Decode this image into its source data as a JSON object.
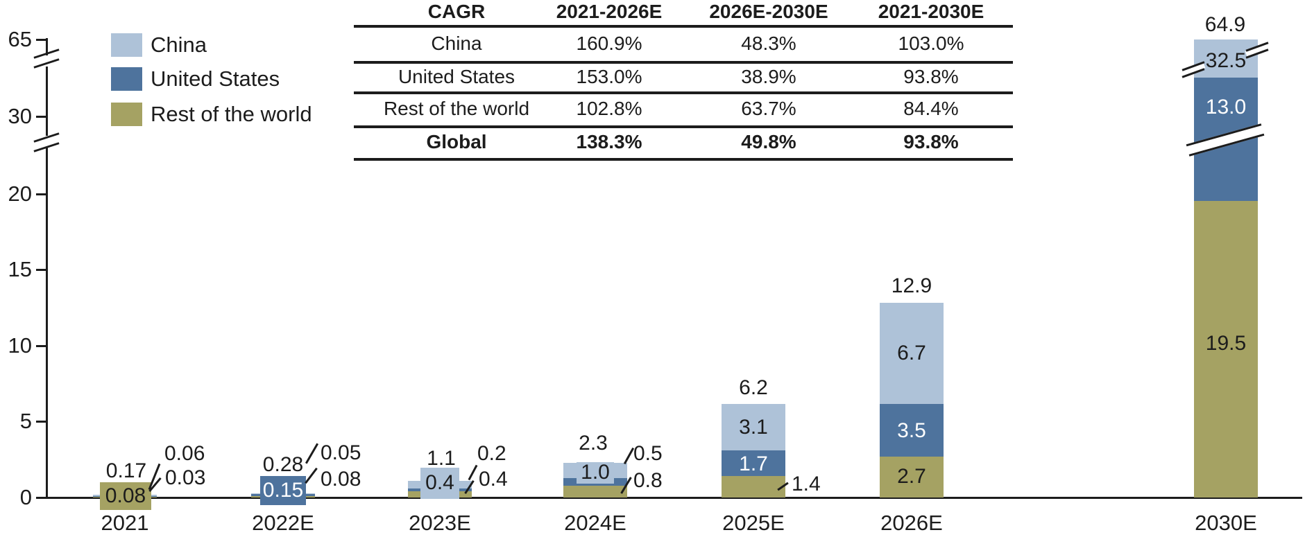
{
  "legend": {
    "items": [
      {
        "label": "China",
        "color": "#AEC2D8"
      },
      {
        "label": "United States",
        "color": "#4E739D"
      },
      {
        "label": "Rest of the world",
        "color": "#A5A263"
      }
    ]
  },
  "table": {
    "header": [
      "CAGR",
      "2021-2026E",
      "2026E-2030E",
      "2021-2030E"
    ],
    "rows": [
      {
        "label": "China",
        "values": [
          "160.9%",
          "48.3%",
          "103.0%"
        ],
        "bold": false
      },
      {
        "label": "United States",
        "values": [
          "153.0%",
          "38.9%",
          "93.8%"
        ],
        "bold": false
      },
      {
        "label": "Rest of the world",
        "values": [
          "102.8%",
          "63.7%",
          "84.4%"
        ],
        "bold": false
      },
      {
        "label": "Global",
        "values": [
          "138.3%",
          "49.8%",
          "93.8%"
        ],
        "bold": true
      }
    ]
  },
  "y_axis": {
    "tick_labels": [
      "65",
      "30",
      "20",
      "15",
      "10",
      "5",
      "0"
    ]
  },
  "x_axis": {
    "labels": [
      "2021",
      "2022E",
      "2023E",
      "2024E",
      "2025E",
      "2026E",
      "2030E"
    ]
  },
  "chart_data": {
    "type": "bar",
    "stacked": true,
    "categories": [
      "2021",
      "2022E",
      "2023E",
      "2024E",
      "2025E",
      "2026E",
      "2030E"
    ],
    "series": [
      {
        "name": "China",
        "color": "#AEC2D8",
        "values": [
          0.06,
          0.05,
          0.4,
          1.0,
          3.1,
          6.7,
          32.5
        ],
        "labels": [
          "0.06",
          "0.05",
          "0.4",
          "1.0",
          "3.1",
          "6.7",
          "32.5"
        ]
      },
      {
        "name": "United States",
        "color": "#4E739D",
        "values": [
          0.03,
          0.15,
          0.2,
          0.5,
          1.7,
          3.5,
          13.0
        ],
        "labels": [
          "0.03",
          "0.15",
          "0.2",
          "0.5",
          "1.7",
          "3.5",
          "13.0"
        ]
      },
      {
        "name": "Rest of the world",
        "color": "#A5A263",
        "values": [
          0.08,
          0.08,
          0.4,
          0.8,
          1.4,
          2.7,
          19.5
        ],
        "labels": [
          "0.08",
          "0.08",
          "0.4",
          "0.8",
          "1.4",
          "2.7",
          "19.5"
        ]
      }
    ],
    "totals": [
      0.17,
      0.28,
      1.1,
      2.3,
      6.2,
      12.9,
      64.9
    ],
    "total_labels": [
      "0.17",
      "0.28",
      "1.1",
      "2.3",
      "6.2",
      "12.9",
      "64.9"
    ],
    "ylim": [
      0,
      65
    ],
    "y_axis_breaks": [
      [
        22,
        28
      ],
      [
        33,
        63
      ]
    ],
    "legend_position": "top-left",
    "grid": false,
    "dark_text_color": "#1c1c1c",
    "light_text_color": "#ffffff"
  }
}
